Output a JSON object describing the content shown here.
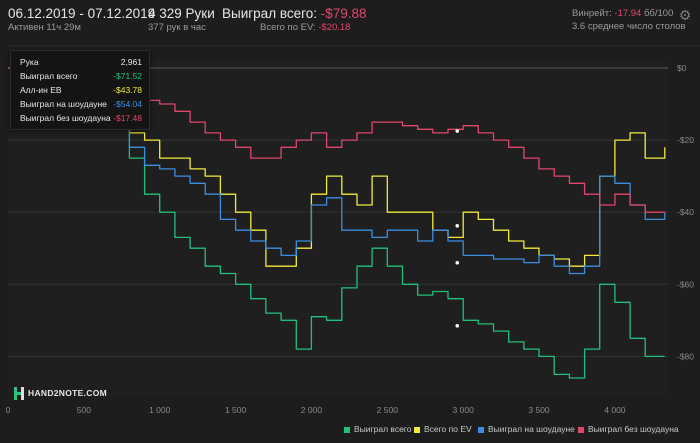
{
  "header": {
    "date_range": "06.12.2019 - 07.12.2019",
    "active": "Активен 11ч 29м",
    "hands": "4 329 Руки",
    "hands_rate": "377 рук в час",
    "won_label": "Выиграл всего:",
    "won_value": "-$79.88",
    "ev_label": "Всего по EV:",
    "ev_value": "-$20.18",
    "winrate_label": "Винрейт:",
    "winrate_value": "-17.94",
    "winrate_unit": "бб/100",
    "tables_avg": "3.6 среднее число столов"
  },
  "tooltip": {
    "rows": [
      {
        "label": "Рука",
        "value": "2,961",
        "color": "#e8e8e8"
      },
      {
        "label": "Выиграл всего",
        "value": "-$71.52",
        "color": "#21c07a"
      },
      {
        "label": "Алл-ин EB",
        "value": "-$43.78",
        "color": "#f2ea3a"
      },
      {
        "label": "Выиграл на шоудауне",
        "value": "-$54.04",
        "color": "#3b8ee0"
      },
      {
        "label": "Выиграл без шоудауна",
        "value": "-$17.48",
        "color": "#e2466a"
      }
    ]
  },
  "logo": {
    "text": "HAND2NOTE.COM"
  },
  "icons": {
    "settings": "gear-icon"
  },
  "chart_data": {
    "type": "line",
    "x": [
      0,
      100,
      200,
      300,
      400,
      500,
      600,
      700,
      800,
      900,
      1000,
      1100,
      1200,
      1300,
      1400,
      1500,
      1600,
      1700,
      1800,
      1900,
      2000,
      2100,
      2200,
      2300,
      2400,
      2500,
      2600,
      2700,
      2800,
      2900,
      3000,
      3100,
      3200,
      3300,
      3400,
      3500,
      3600,
      3700,
      3800,
      3900,
      4000,
      4100,
      4200,
      4329
    ],
    "series": [
      {
        "name": "Выиграл всего",
        "color": "#21c07a",
        "values": [
          0,
          -1,
          2,
          -2,
          0,
          0,
          -4,
          -6,
          -25,
          -35,
          -40,
          -47,
          -50,
          -55,
          -57,
          -60,
          -64,
          -68,
          -70,
          -78,
          -69,
          -70,
          -61,
          -55,
          -50,
          -55,
          -60,
          -63,
          -62,
          -64,
          -70,
          -71,
          -73,
          -76,
          -78,
          -80,
          -85,
          -86,
          -78,
          -60,
          -65,
          -75,
          -80,
          -80
        ]
      },
      {
        "name": "Всего по EV",
        "color": "#f2ea3a",
        "values": [
          0,
          -1,
          2,
          -2,
          0,
          0,
          -2,
          -4,
          -18,
          -20,
          -25,
          -25,
          -28,
          -30,
          -35,
          -40,
          -45,
          -55,
          -55,
          -50,
          -35,
          -30,
          -35,
          -38,
          -30,
          -40,
          -40,
          -40,
          -45,
          -47,
          -40,
          -42,
          -45,
          -48,
          -50,
          -52,
          -53,
          -55,
          -52,
          -30,
          -20,
          -18,
          -25,
          -22
        ]
      },
      {
        "name": "Выиграл на шоудауне",
        "color": "#3b8ee0",
        "values": [
          0,
          -1,
          2,
          -2,
          0,
          0,
          -4,
          -6,
          -22,
          -27,
          -28,
          -30,
          -32,
          -35,
          -42,
          -45,
          -48,
          -50,
          -52,
          -48,
          -38,
          -36,
          -45,
          -45,
          -47,
          -45,
          -45,
          -48,
          -45,
          -48,
          -52,
          -52,
          -53,
          -53,
          -54,
          -52,
          -55,
          -57,
          -55,
          -30,
          -32,
          -38,
          -42,
          -40
        ]
      },
      {
        "name": "Выиграл без шоудауна",
        "color": "#e2466a",
        "values": [
          0,
          0,
          0,
          -2,
          -3,
          -4,
          -6,
          -5,
          -8,
          -9,
          -10,
          -12,
          -15,
          -18,
          -20,
          -22,
          -25,
          -25,
          -22,
          -20,
          -18,
          -22,
          -20,
          -18,
          -15,
          -15,
          -16,
          -17,
          -18,
          -17,
          -16,
          -18,
          -20,
          -22,
          -25,
          -28,
          -30,
          -32,
          -35,
          -38,
          -35,
          -38,
          -40,
          -40
        ]
      }
    ],
    "xticks": [
      0,
      500,
      1000,
      1500,
      2000,
      2500,
      3000,
      3500,
      4000
    ],
    "xtick_labels": [
      "0",
      "500",
      "1 000",
      "1 500",
      "2 000",
      "2 500",
      "3 000",
      "3 500",
      "4 000"
    ],
    "yticks": [
      0,
      -20,
      -40,
      -60,
      -80
    ],
    "ytick_labels": [
      "$0",
      "-$20",
      "-$40",
      "-$60",
      "-$80"
    ],
    "xlim": [
      0,
      4350
    ],
    "ylim": [
      -91,
      0
    ],
    "grid": true,
    "legend_position": "bottom-right",
    "markers": [
      {
        "x": 2961,
        "values": [
          -71.52,
          -43.78,
          -54.04,
          -17.48
        ]
      }
    ]
  }
}
